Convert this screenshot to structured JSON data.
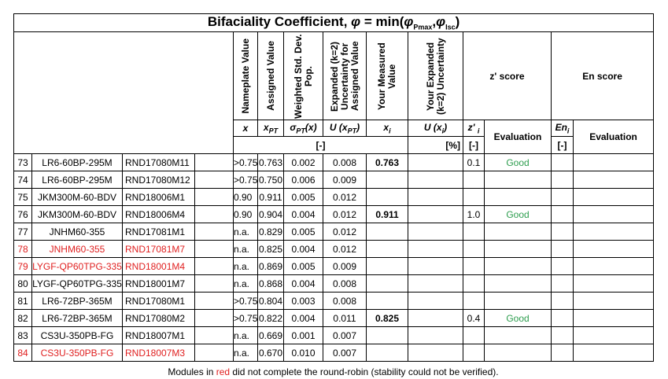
{
  "title_parts": [
    {
      "text": "Bifaciality Coefficient, "
    },
    {
      "text": "φ",
      "italic": true
    },
    {
      "text": " = min("
    },
    {
      "text": "φ",
      "italic": true
    },
    {
      "text": "Pmax",
      "sub": true
    },
    {
      "text": ","
    },
    {
      "text": "φ",
      "italic": true
    },
    {
      "text": "Isc",
      "sub": true
    },
    {
      "text": ")"
    }
  ],
  "rotated_headers": [
    "Nameplate Value",
    "Assigned Value",
    "Weighted Std. Dev. Pop.",
    "Expanded (k=2) Uncertainty for Assigned Value",
    "Your Measured Value",
    "Your Expanded (k=2) Uncertainty"
  ],
  "score_headers": [
    "z' score",
    "En score"
  ],
  "symbols": [
    [
      {
        "text": "x"
      }
    ],
    [
      {
        "text": "x"
      },
      {
        "text": "PT",
        "sub": true
      }
    ],
    [
      {
        "text": "σ"
      },
      {
        "text": "PT",
        "sub": true
      },
      {
        "text": "(x)"
      }
    ],
    [
      {
        "text": "U (x"
      },
      {
        "text": "PT",
        "sub": true
      },
      {
        "text": ")"
      }
    ],
    [
      {
        "text": "x"
      },
      {
        "text": "i",
        "sub": true
      }
    ],
    [
      {
        "text": "U (x"
      },
      {
        "text": "i",
        "sub": true
      },
      {
        "text": ")"
      }
    ],
    [
      {
        "text": "z' "
      },
      {
        "text": "i",
        "sub": true
      }
    ],
    [
      {
        "text": "Evaluation"
      }
    ],
    [
      {
        "text": "En"
      },
      {
        "text": "i",
        "sub": true
      }
    ],
    [
      {
        "text": "Evaluation"
      }
    ]
  ],
  "units": [
    "[-]",
    "[%]",
    "[-]",
    "[-]"
  ],
  "good_color": "#2e9e4f",
  "red_color": "#e02020",
  "rows": [
    {
      "cells": [
        "73",
        "LR6-60BP-295M",
        "RND17080M11",
        null,
        ">0.75",
        "0.763",
        "0.002",
        "0.008",
        "0.763",
        null,
        "0.1",
        "Good",
        null,
        null
      ]
    },
    {
      "cells": [
        "74",
        "LR6-60BP-295M",
        "RND17080M12",
        null,
        ">0.75",
        "0.750",
        "0.006",
        "0.009",
        null,
        null,
        null,
        null,
        null,
        null
      ]
    },
    {
      "cells": [
        "75",
        "JKM300M-60-BDV",
        "RND18006M1",
        null,
        "0.90",
        "0.911",
        "0.005",
        "0.012",
        null,
        null,
        null,
        null,
        null,
        null
      ]
    },
    {
      "cells": [
        "76",
        "JKM300M-60-BDV",
        "RND18006M4",
        null,
        "0.90",
        "0.904",
        "0.004",
        "0.012",
        "0.911",
        null,
        "1.0",
        "Good",
        null,
        null
      ]
    },
    {
      "cells": [
        "77",
        "JNHM60-355",
        "RND17081M1",
        null,
        "n.a.",
        "0.829",
        "0.005",
        "0.012",
        null,
        null,
        null,
        null,
        null,
        null
      ]
    },
    {
      "red": true,
      "cells": [
        "78",
        "JNHM60-355",
        "RND17081M7",
        null,
        "n.a.",
        "0.825",
        "0.004",
        "0.012",
        null,
        null,
        null,
        null,
        null,
        null
      ]
    },
    {
      "red": true,
      "cells": [
        "79",
        "LYGF-QP60TPG-335",
        "RND18001M4",
        null,
        "n.a.",
        "0.869",
        "0.005",
        "0.009",
        null,
        null,
        null,
        null,
        null,
        null
      ]
    },
    {
      "cells": [
        "80",
        "LYGF-QP60TPG-335",
        "RND18001M7",
        null,
        "n.a.",
        "0.868",
        "0.004",
        "0.008",
        null,
        null,
        null,
        null,
        null,
        null
      ]
    },
    {
      "cells": [
        "81",
        "LR6-72BP-365M",
        "RND17080M1",
        null,
        ">0.75",
        "0.804",
        "0.003",
        "0.008",
        null,
        null,
        null,
        null,
        null,
        null
      ]
    },
    {
      "cells": [
        "82",
        "LR6-72BP-365M",
        "RND17080M2",
        null,
        ">0.75",
        "0.822",
        "0.004",
        "0.011",
        "0.825",
        null,
        "0.4",
        "Good",
        null,
        null
      ]
    },
    {
      "cells": [
        "83",
        "CS3U-350PB-FG",
        "RND18007M1",
        null,
        "n.a.",
        "0.669",
        "0.001",
        "0.007",
        null,
        null,
        null,
        null,
        null,
        null
      ]
    },
    {
      "red": true,
      "cells": [
        "84",
        "CS3U-350PB-FG",
        "RND18007M3",
        null,
        "n.a.",
        "0.670",
        "0.010",
        "0.007",
        null,
        null,
        null,
        null,
        null,
        null
      ]
    }
  ],
  "footnote": [
    "Modules in ",
    "red",
    " did not complete the round-robin (stability could not be verified)."
  ]
}
